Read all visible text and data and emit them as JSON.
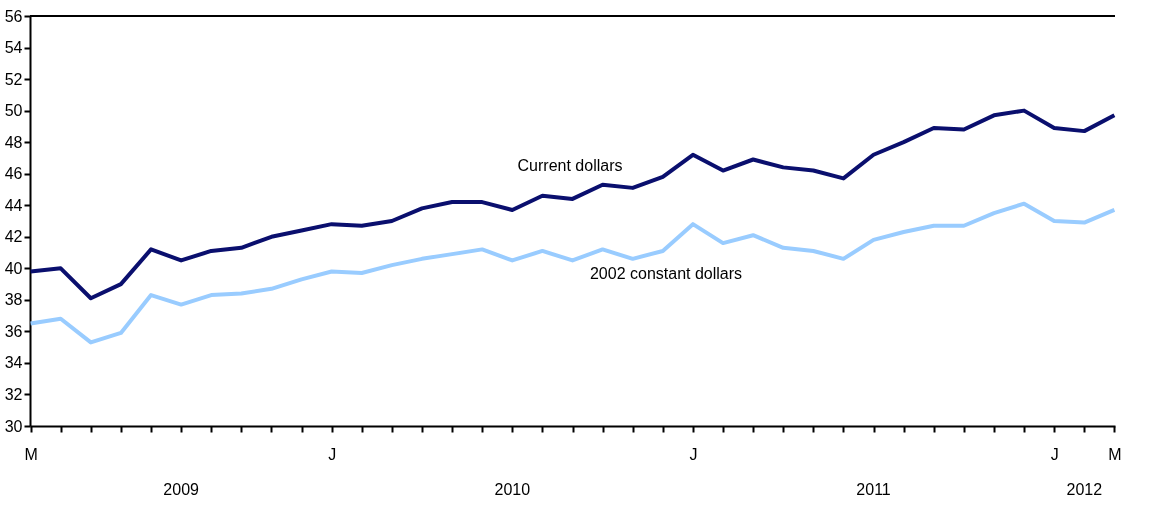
{
  "chart_data": {
    "type": "line",
    "categories": [
      "M",
      null,
      null,
      null,
      null,
      null,
      null,
      null,
      null,
      null,
      "J",
      null,
      null,
      null,
      null,
      null,
      null,
      null,
      null,
      null,
      null,
      null,
      "J",
      null,
      null,
      null,
      null,
      null,
      null,
      null,
      null,
      null,
      null,
      null,
      "J",
      null,
      "M"
    ],
    "series": [
      {
        "name": "Current dollars",
        "color": "#0a0f6e",
        "values": [
          39.8,
          40.0,
          38.1,
          39.0,
          41.2,
          40.5,
          41.1,
          41.3,
          42.0,
          42.4,
          42.8,
          42.7,
          43.0,
          43.8,
          44.2,
          44.2,
          43.7,
          44.6,
          44.4,
          45.3,
          45.1,
          45.8,
          47.2,
          46.2,
          46.9,
          46.4,
          46.2,
          45.7,
          47.2,
          48.0,
          48.9,
          48.8,
          49.7,
          50.0,
          48.9,
          48.7,
          49.7
        ]
      },
      {
        "name": "2002 constant dollars",
        "color": "#99ccff",
        "values": [
          36.5,
          36.8,
          35.3,
          35.9,
          38.3,
          37.7,
          38.3,
          38.4,
          38.7,
          39.3,
          39.8,
          39.7,
          40.2,
          40.6,
          40.9,
          41.2,
          40.5,
          41.1,
          40.5,
          41.2,
          40.6,
          41.1,
          42.8,
          41.6,
          42.1,
          41.3,
          41.1,
          40.6,
          41.8,
          42.3,
          42.7,
          42.7,
          43.5,
          44.1,
          43.0,
          42.9,
          43.7
        ]
      }
    ],
    "annotations": [
      "2009",
      "2010",
      "2011",
      "2012"
    ],
    "ylim": [
      30,
      56
    ],
    "yticks": [
      30,
      32,
      34,
      36,
      38,
      40,
      42,
      44,
      46,
      48,
      50,
      52,
      54,
      56
    ],
    "grid": false,
    "marker": "none",
    "line_style": "solid"
  }
}
